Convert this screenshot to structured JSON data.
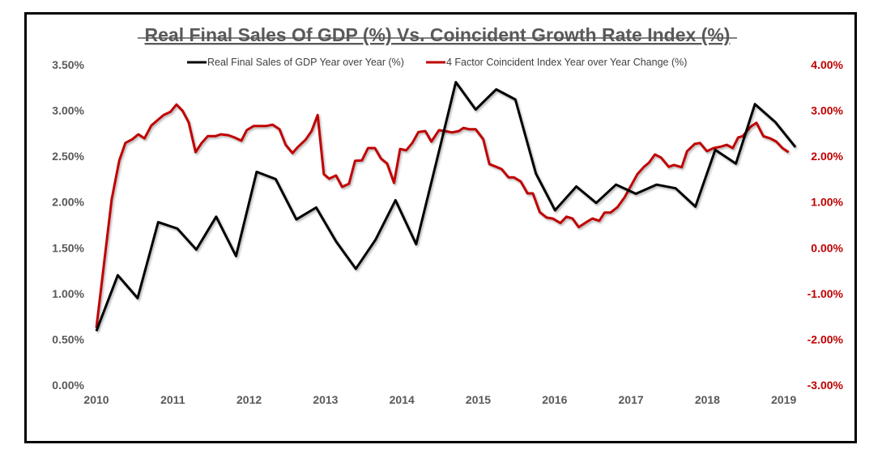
{
  "chart_data": {
    "type": "line",
    "title": "Real Final Sales Of GDP (%) Vs. Coincident Growth Rate Index (%)",
    "xlabel": "",
    "ylabel": "",
    "xlim": [
      2010,
      2019.17
    ],
    "ylim_left": [
      0,
      3.5
    ],
    "ylim_right": [
      -3,
      4
    ],
    "grid": false,
    "legend_position": "top-center",
    "x_ticks": [
      "2010",
      "2011",
      "2012",
      "2013",
      "2014",
      "2015",
      "2016",
      "2017",
      "2018",
      "2019"
    ],
    "y_ticks_left": [
      "0.00%",
      "0.50%",
      "1.00%",
      "1.50%",
      "2.00%",
      "2.50%",
      "3.00%",
      "3.50%"
    ],
    "y_ticks_right": [
      "-3.00%",
      "-2.00%",
      "-1.00%",
      "0.00%",
      "1.00%",
      "2.00%",
      "3.00%",
      "4.00%"
    ],
    "series": [
      {
        "name": "Real Final Sales of GDP Year over Year (%)",
        "axis": "left",
        "color": "#000000",
        "x": [
          2010.0,
          2010.28,
          2010.54,
          2010.81,
          2011.06,
          2011.31,
          2011.57,
          2011.83,
          2012.1,
          2012.35,
          2012.62,
          2012.88,
          2013.14,
          2013.4,
          2013.66,
          2013.92,
          2014.19,
          2014.45,
          2014.71,
          2014.97,
          2015.24,
          2015.49,
          2015.76,
          2016.01,
          2016.29,
          2016.55,
          2016.81,
          2017.07,
          2017.34,
          2017.59,
          2017.85,
          2018.11,
          2018.38,
          2018.63,
          2018.9,
          2019.16
        ],
        "y": [
          0.59,
          1.2,
          0.95,
          1.78,
          1.71,
          1.48,
          1.84,
          1.41,
          2.33,
          2.25,
          1.81,
          1.94,
          1.57,
          1.27,
          1.59,
          2.02,
          1.54,
          2.42,
          3.31,
          3.01,
          3.23,
          3.12,
          2.31,
          1.91,
          2.17,
          1.99,
          2.19,
          2.09,
          2.19,
          2.15,
          1.95,
          2.57,
          2.42,
          3.07,
          2.87,
          2.6
        ]
      },
      {
        "name": "4 Factor Coincident Index Year over Year Change (%)",
        "axis": "right",
        "color": "#C00000",
        "x": [
          2010.0,
          2010.12,
          2010.2,
          2010.3,
          2010.38,
          2010.47,
          2010.55,
          2010.63,
          2010.72,
          2010.81,
          2010.88,
          2010.97,
          2011.05,
          2011.13,
          2011.21,
          2011.3,
          2011.38,
          2011.46,
          2011.56,
          2011.63,
          2011.73,
          2011.81,
          2011.9,
          2011.97,
          2012.06,
          2012.13,
          2012.22,
          2012.31,
          2012.4,
          2012.48,
          2012.57,
          2012.64,
          2012.74,
          2012.82,
          2012.9,
          2012.98,
          2013.05,
          2013.14,
          2013.22,
          2013.31,
          2013.39,
          2013.48,
          2013.56,
          2013.65,
          2013.73,
          2013.81,
          2013.9,
          2013.98,
          2014.06,
          2014.14,
          2014.22,
          2014.31,
          2014.39,
          2014.49,
          2014.57,
          2014.66,
          2014.75,
          2014.81,
          2014.89,
          2014.97,
          2015.07,
          2015.15,
          2015.24,
          2015.31,
          2015.4,
          2015.47,
          2015.56,
          2015.65,
          2015.72,
          2015.81,
          2015.9,
          2015.98,
          2016.08,
          2016.16,
          2016.24,
          2016.32,
          2016.41,
          2016.5,
          2016.59,
          2016.66,
          2016.74,
          2016.83,
          2016.92,
          2017.01,
          2017.09,
          2017.17,
          2017.24,
          2017.32,
          2017.4,
          2017.5,
          2017.57,
          2017.67,
          2017.74,
          2017.84,
          2017.91,
          2018.0,
          2018.09,
          2018.18,
          2018.26,
          2018.34,
          2018.41,
          2018.47,
          2018.57,
          2018.65,
          2018.74,
          2018.83,
          2018.91,
          2018.99,
          2019.07
        ],
        "y": [
          -1.75,
          -0.07,
          1.05,
          1.91,
          2.29,
          2.37,
          2.48,
          2.39,
          2.67,
          2.8,
          2.9,
          2.97,
          3.13,
          2.99,
          2.74,
          2.09,
          2.29,
          2.44,
          2.44,
          2.48,
          2.46,
          2.41,
          2.34,
          2.57,
          2.66,
          2.66,
          2.66,
          2.69,
          2.59,
          2.25,
          2.07,
          2.2,
          2.36,
          2.55,
          2.9,
          1.61,
          1.51,
          1.58,
          1.33,
          1.4,
          1.9,
          1.91,
          2.18,
          2.18,
          1.95,
          1.84,
          1.42,
          2.16,
          2.13,
          2.29,
          2.53,
          2.55,
          2.32,
          2.57,
          2.55,
          2.52,
          2.55,
          2.62,
          2.59,
          2.59,
          2.37,
          1.83,
          1.77,
          1.72,
          1.54,
          1.54,
          1.45,
          1.19,
          1.19,
          0.78,
          0.66,
          0.64,
          0.54,
          0.68,
          0.64,
          0.45,
          0.55,
          0.64,
          0.59,
          0.77,
          0.77,
          0.89,
          1.1,
          1.37,
          1.61,
          1.76,
          1.86,
          2.04,
          1.97,
          1.77,
          1.81,
          1.76,
          2.11,
          2.27,
          2.29,
          2.11,
          2.18,
          2.21,
          2.25,
          2.18,
          2.41,
          2.44,
          2.64,
          2.73,
          2.44,
          2.39,
          2.32,
          2.18,
          2.09
        ]
      }
    ]
  }
}
